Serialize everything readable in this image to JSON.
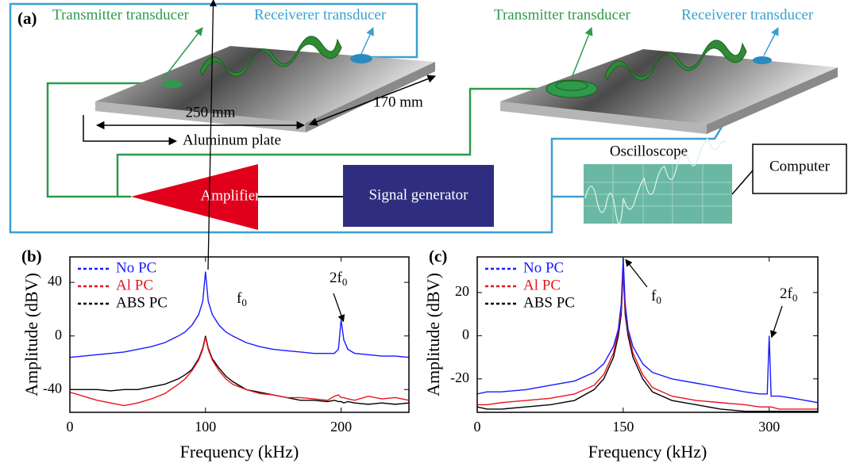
{
  "diagram": {
    "panel_label": "(a)",
    "left_transmitter": "Transmitter transducer",
    "left_receiver": "Receiverer transducer",
    "right_transmitter": "Transmitter transducer",
    "right_receiver": "Receiverer transducer",
    "length": "250 mm",
    "width": "170 mm",
    "plate": "Aluminum plate",
    "amplifier": "Amplifier",
    "generator": "Signal generator",
    "oscilloscope": "Oscilloscope",
    "computer": "Computer"
  },
  "chart_data": [
    {
      "type": "line",
      "panel_label": "(b)",
      "x_label": "Frequency (kHz)",
      "y_label": "Amplitude (dBV)",
      "x": [
        0,
        10,
        20,
        30,
        40,
        50,
        60,
        70,
        80,
        85,
        90,
        95,
        98,
        100,
        102,
        105,
        110,
        115,
        120,
        130,
        140,
        150,
        160,
        170,
        180,
        190,
        195,
        198,
        200,
        202,
        205,
        210,
        220,
        230,
        240,
        250
      ],
      "series": [
        {
          "name": "No PC",
          "color": "#1a1aff",
          "values": [
            -16,
            -15,
            -14,
            -13,
            -12,
            -10,
            -8,
            -5,
            0,
            3,
            8,
            16,
            26,
            48,
            26,
            16,
            8,
            3,
            0,
            -5,
            -8,
            -10,
            -11,
            -12,
            -13,
            -13,
            -13,
            -10,
            12,
            -3,
            -10,
            -13,
            -14,
            -15,
            -15,
            -16
          ]
        },
        {
          "name": "Al  PC",
          "color": "#e8141e",
          "values": [
            -42,
            -45,
            -48,
            -50,
            -52,
            -50,
            -47,
            -43,
            -36,
            -32,
            -26,
            -18,
            -10,
            -1,
            -10,
            -18,
            -26,
            -32,
            -36,
            -40,
            -43,
            -44,
            -46,
            -46,
            -47,
            -48,
            -45,
            -44,
            -46,
            -46,
            -47,
            -48,
            -45,
            -47,
            -46,
            -48
          ]
        },
        {
          "name": "ABS  PC",
          "color": "#000000",
          "values": [
            -40,
            -40,
            -40,
            -41,
            -40,
            -40,
            -38,
            -36,
            -32,
            -29,
            -25,
            -17,
            -9,
            0,
            -9,
            -17,
            -24,
            -30,
            -34,
            -40,
            -42,
            -44,
            -46,
            -48,
            -48,
            -49,
            -48,
            -49,
            -49,
            -50,
            -49,
            -50,
            -51,
            -50,
            -51,
            -50
          ]
        }
      ],
      "annotations": [
        {
          "text": "f",
          "sub": "0"
        },
        {
          "text": "2f",
          "sub": "0"
        }
      ],
      "xlim": [
        0,
        250
      ],
      "xticks": [
        0,
        100,
        200
      ],
      "ylim": [
        -57,
        59
      ],
      "yticks": [
        -40,
        0,
        40
      ]
    },
    {
      "type": "line",
      "panel_label": "(c)",
      "x_label": "Frequency (kHz)",
      "y_label": "Amplitude (dBV)",
      "x": [
        0,
        10,
        25,
        50,
        75,
        100,
        120,
        130,
        140,
        145,
        148,
        150,
        152,
        155,
        160,
        170,
        180,
        200,
        225,
        250,
        275,
        290,
        298,
        300,
        302,
        310,
        325,
        350
      ],
      "series": [
        {
          "name": "No PC",
          "color": "#1a1aff",
          "values": [
            -27,
            -26,
            -26,
            -25,
            -23,
            -21,
            -17,
            -13,
            -5,
            3,
            15,
            36,
            15,
            3,
            -5,
            -13,
            -17,
            -20,
            -22,
            -24,
            -26,
            -27,
            -27,
            0,
            -28,
            -28,
            -29,
            -31
          ]
        },
        {
          "name": "Al  PC",
          "color": "#e8141e",
          "values": [
            -32,
            -32,
            -31,
            -30,
            -29,
            -27,
            -23,
            -18,
            -8,
            2,
            12,
            30,
            12,
            2,
            -8,
            -18,
            -24,
            -28,
            -30,
            -31,
            -32,
            -33,
            -33,
            -33,
            -33,
            -34,
            -34,
            -34
          ]
        },
        {
          "name": "ABS  PC",
          "color": "#000000",
          "values": [
            -33,
            -34,
            -34,
            -33,
            -32,
            -30,
            -25,
            -20,
            -10,
            0,
            10,
            30,
            10,
            0,
            -10,
            -20,
            -26,
            -30,
            -32,
            -34,
            -35,
            -35,
            -35,
            -35,
            -35,
            -35,
            -35,
            -35
          ]
        }
      ],
      "annotations": [
        {
          "text": "f",
          "sub": "0"
        },
        {
          "text": "2f",
          "sub": "0"
        }
      ],
      "xlim": [
        0,
        350
      ],
      "xticks": [
        0,
        150,
        300
      ],
      "ylim": [
        -35.5,
        36.5
      ],
      "yticks": [
        -20,
        0,
        20
      ]
    }
  ]
}
